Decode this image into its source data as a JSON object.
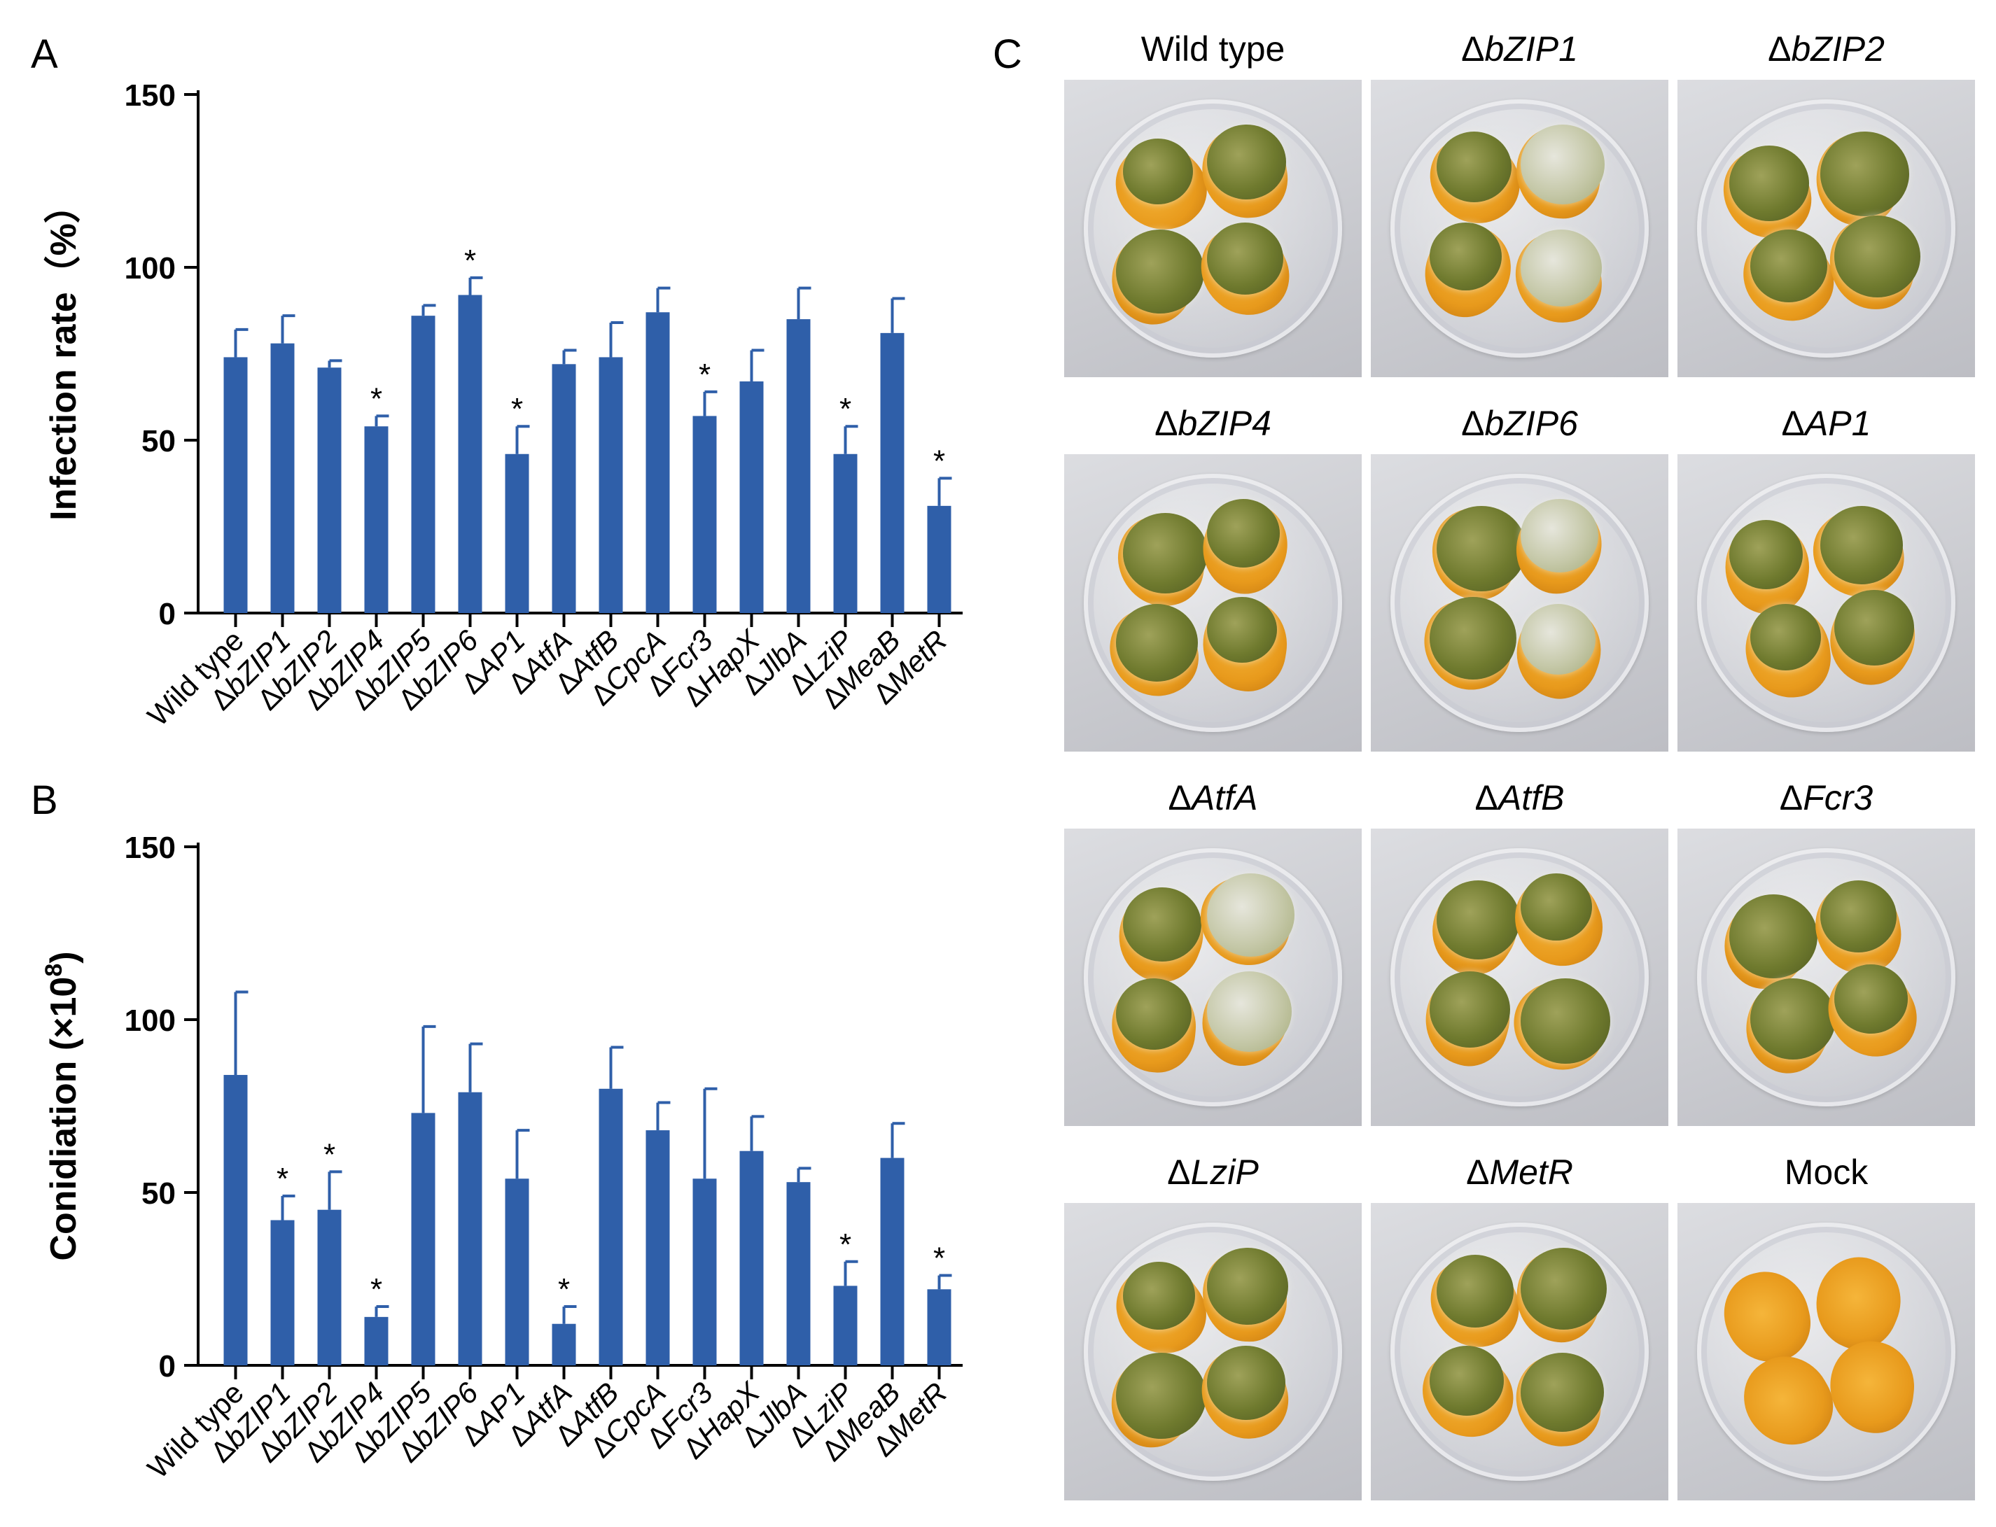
{
  "panel_labels": {
    "a": "A",
    "b": "B",
    "c": "C"
  },
  "colors": {
    "bar": "#2f5fa9",
    "axis": "#000000"
  },
  "chart_data": [
    {
      "type": "bar",
      "title": "",
      "xlabel": "",
      "ylabel": "Infection rate（%）",
      "ylim": [
        0,
        150
      ],
      "yticks": [
        0,
        50,
        100,
        150
      ],
      "categories": [
        "Wild type",
        "ΔbZIP1",
        "ΔbZIP2",
        "ΔbZIP4",
        "ΔbZIP5",
        "ΔbZIP6",
        "ΔAP1",
        "ΔAtfA",
        "ΔAtfB",
        "ΔCpcA",
        "ΔFcr3",
        "ΔHapX",
        "ΔJlbA",
        "ΔLziP",
        "ΔMeaB",
        "ΔMetR"
      ],
      "values": [
        74,
        78,
        71,
        54,
        86,
        92,
        46,
        72,
        74,
        87,
        57,
        67,
        85,
        46,
        81,
        31
      ],
      "errors": [
        8,
        8,
        2,
        3,
        3,
        5,
        8,
        4,
        10,
        7,
        7,
        9,
        9,
        8,
        10,
        8
      ],
      "significant": [
        false,
        false,
        false,
        true,
        false,
        true,
        true,
        false,
        false,
        false,
        true,
        false,
        false,
        true,
        false,
        true
      ],
      "significance_mark": "*"
    },
    {
      "type": "bar",
      "title": "",
      "xlabel": "",
      "ylabel": "Conidiation (×10",
      "ylabel_superscript": "8",
      "ylabel_suffix": ")",
      "ylim": [
        0,
        150
      ],
      "yticks": [
        0,
        50,
        100,
        150
      ],
      "categories": [
        "Wild type",
        "ΔbZIP1",
        "ΔbZIP2",
        "ΔbZIP4",
        "ΔbZIP5",
        "ΔbZIP6",
        "ΔAP1",
        "ΔAtfA",
        "ΔAtfB",
        "ΔCpcA",
        "ΔFcr3",
        "ΔHapX",
        "ΔJlbA",
        "ΔLziP",
        "ΔMeaB",
        "ΔMetR"
      ],
      "values": [
        84,
        42,
        45,
        14,
        73,
        79,
        54,
        12,
        80,
        68,
        54,
        62,
        53,
        23,
        60,
        22
      ],
      "errors": [
        24,
        7,
        11,
        3,
        25,
        14,
        14,
        5,
        12,
        8,
        26,
        10,
        4,
        7,
        10,
        4
      ],
      "significant": [
        false,
        true,
        true,
        true,
        false,
        false,
        false,
        true,
        false,
        false,
        false,
        false,
        false,
        true,
        false,
        true
      ],
      "significance_mark": "*"
    }
  ],
  "photos": [
    {
      "prefix": "",
      "name": "Wild type",
      "italic": false,
      "pale": false,
      "mold": true
    },
    {
      "prefix": "Δ",
      "name": "bZIP1",
      "italic": true,
      "pale": true,
      "mold": true
    },
    {
      "prefix": "Δ",
      "name": "bZIP2",
      "italic": true,
      "pale": false,
      "mold": true
    },
    {
      "prefix": "Δ",
      "name": "bZIP4",
      "italic": true,
      "pale": false,
      "mold": true
    },
    {
      "prefix": "Δ",
      "name": "bZIP6",
      "italic": true,
      "pale": true,
      "mold": true
    },
    {
      "prefix": "Δ",
      "name": "AP1",
      "italic": true,
      "pale": false,
      "mold": true
    },
    {
      "prefix": "Δ",
      "name": "AtfA",
      "italic": true,
      "pale": true,
      "mold": true
    },
    {
      "prefix": "Δ",
      "name": "AtfB",
      "italic": true,
      "pale": false,
      "mold": true
    },
    {
      "prefix": "Δ",
      "name": "Fcr3",
      "italic": true,
      "pale": false,
      "mold": true
    },
    {
      "prefix": "Δ",
      "name": "LziP",
      "italic": true,
      "pale": false,
      "mold": true
    },
    {
      "prefix": "Δ",
      "name": "MetR",
      "italic": true,
      "pale": false,
      "mold": true
    },
    {
      "prefix": "",
      "name": "Mock",
      "italic": false,
      "pale": false,
      "mold": false
    }
  ]
}
